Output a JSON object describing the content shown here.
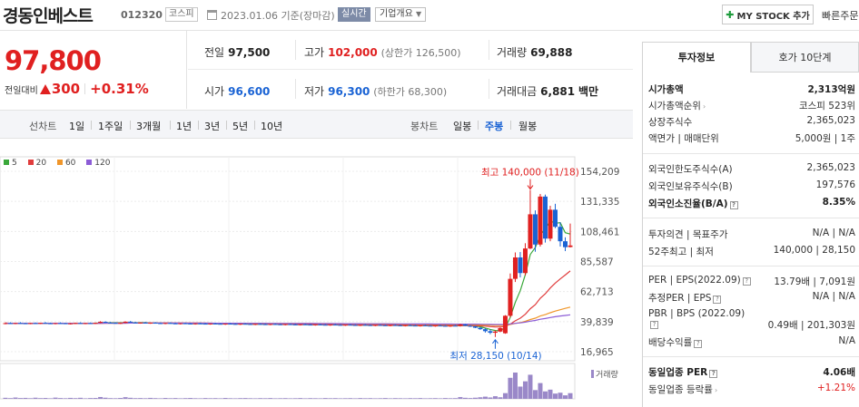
{
  "header": {
    "stock_name": "경동인베스트",
    "stock_code": "012320",
    "market": "코스피",
    "date_text": "2023.01.06 기준(장마감)",
    "live_badge": "실시간",
    "corp_overview": "기업개요",
    "my_stock_button": "MY STOCK 추가",
    "quick_order": "빠른주문"
  },
  "price": {
    "current": "97,800",
    "change_label": "전일대비",
    "change_amount": "300",
    "change_rate": "+0.31%",
    "colors": {
      "up": "#e02020",
      "down": "#1a63d4"
    }
  },
  "summary": {
    "prev_label": "전일",
    "prev": "97,500",
    "high_label": "고가",
    "high": "102,000",
    "upper_limit": "(상한가 126,500)",
    "volume_label": "거래량",
    "volume": "69,888",
    "open_label": "시가",
    "open": "96,600",
    "low_label": "저가",
    "low": "96,300",
    "lower_limit": "(하한가 68,300)",
    "amount_label": "거래대금",
    "amount": "6,881",
    "amount_unit": "백만"
  },
  "period": {
    "line_title": "선차트",
    "line_items": [
      "1일",
      "1주일",
      "3개월",
      "1년",
      "3년",
      "5년",
      "10년"
    ],
    "candle_title": "봉차트",
    "candle_items": [
      "일봉",
      "주봉",
      "월봉"
    ],
    "active_candle": "주봉"
  },
  "chart_data": {
    "type": "candlestick",
    "legend": [
      {
        "name": "5",
        "color": "#3aa83a"
      },
      {
        "name": "20",
        "color": "#e03c3c"
      },
      {
        "name": "60",
        "color": "#f0962a"
      },
      {
        "name": "120",
        "color": "#8c5cd6"
      }
    ],
    "y_ticks": [
      "154,209",
      "131,335",
      "108,461",
      "85,587",
      "62,713",
      "39,839",
      "16,965"
    ],
    "ylim": [
      16965,
      154209
    ],
    "annotations": {
      "high": "최고 140,000 (11/18)",
      "low": "최저 28,150 (10/14)"
    },
    "high_value": 140000,
    "low_value": 28150,
    "volume_label": "거래량",
    "candles": [
      [
        38500,
        39200,
        37800,
        38700
      ],
      [
        38700,
        39300,
        38200,
        38400
      ],
      [
        38400,
        38900,
        37900,
        38800
      ],
      [
        38800,
        39400,
        38300,
        38600
      ],
      [
        38600,
        39000,
        38000,
        38300
      ],
      [
        38300,
        38900,
        37900,
        38700
      ],
      [
        38700,
        39200,
        38200,
        38500
      ],
      [
        38500,
        39000,
        38000,
        38900
      ],
      [
        38900,
        39500,
        38400,
        38600
      ],
      [
        38600,
        39100,
        38100,
        38300
      ],
      [
        38300,
        38800,
        37800,
        38700
      ],
      [
        38700,
        39300,
        38200,
        38600
      ],
      [
        38600,
        39000,
        38100,
        38200
      ],
      [
        38200,
        38700,
        37700,
        38500
      ],
      [
        38500,
        39100,
        38000,
        38800
      ],
      [
        38800,
        39300,
        38300,
        38400
      ],
      [
        38400,
        38900,
        37900,
        38700
      ],
      [
        38700,
        39200,
        38200,
        38500
      ],
      [
        38500,
        39100,
        38000,
        38900
      ],
      [
        38900,
        40200,
        38600,
        39700
      ],
      [
        39700,
        40100,
        38900,
        39100
      ],
      [
        39100,
        39600,
        38500,
        38900
      ],
      [
        38900,
        39400,
        38300,
        38600
      ],
      [
        38600,
        39100,
        38100,
        38900
      ],
      [
        38900,
        40100,
        38600,
        39800
      ],
      [
        39800,
        40300,
        39000,
        39200
      ],
      [
        39200,
        39700,
        38600,
        38800
      ],
      [
        38800,
        39300,
        38300,
        39100
      ],
      [
        39100,
        39600,
        38500,
        38700
      ],
      [
        38700,
        39200,
        38200,
        39000
      ],
      [
        39000,
        39500,
        38500,
        38700
      ],
      [
        38700,
        39100,
        38200,
        38400
      ],
      [
        38400,
        38900,
        37900,
        38800
      ],
      [
        38800,
        39300,
        38300,
        38500
      ],
      [
        38500,
        39000,
        38000,
        38200
      ],
      [
        38200,
        38700,
        37700,
        38600
      ],
      [
        38600,
        39100,
        38100,
        38400
      ],
      [
        38400,
        38800,
        37900,
        38100
      ],
      [
        38100,
        38600,
        37600,
        38500
      ],
      [
        38500,
        39000,
        38000,
        38300
      ],
      [
        38300,
        38800,
        37800,
        38000
      ],
      [
        38000,
        38500,
        37500,
        38400
      ],
      [
        38400,
        38900,
        37900,
        38200
      ],
      [
        38200,
        38700,
        37700,
        37900
      ],
      [
        37900,
        38400,
        37400,
        38300
      ],
      [
        38300,
        38800,
        37800,
        38100
      ],
      [
        38100,
        38600,
        37600,
        37800
      ],
      [
        37800,
        38300,
        37300,
        38200
      ],
      [
        38200,
        38700,
        37700,
        38000
      ],
      [
        38000,
        38500,
        37500,
        37700
      ],
      [
        37700,
        38200,
        37200,
        38100
      ],
      [
        38100,
        38600,
        37600,
        37900
      ],
      [
        37900,
        38400,
        37400,
        37600
      ],
      [
        37600,
        38100,
        37100,
        38000
      ],
      [
        38000,
        38500,
        37500,
        37800
      ],
      [
        37800,
        38300,
        37300,
        37500
      ],
      [
        37500,
        38000,
        37000,
        37900
      ],
      [
        37900,
        38400,
        37400,
        37700
      ],
      [
        37700,
        38200,
        37200,
        37400
      ],
      [
        37400,
        37900,
        36900,
        37800
      ],
      [
        37800,
        38300,
        37300,
        37600
      ],
      [
        37600,
        38100,
        37100,
        37300
      ],
      [
        37300,
        37800,
        36800,
        37700
      ],
      [
        37700,
        38200,
        37200,
        37500
      ],
      [
        37500,
        38000,
        37000,
        37200
      ],
      [
        37200,
        37700,
        36700,
        37600
      ],
      [
        37600,
        38100,
        37100,
        37400
      ],
      [
        37400,
        37900,
        36900,
        37100
      ],
      [
        37100,
        37600,
        36600,
        37500
      ],
      [
        37500,
        38000,
        37000,
        37300
      ],
      [
        37300,
        37800,
        36800,
        37000
      ],
      [
        37000,
        37500,
        36500,
        37400
      ],
      [
        37400,
        37900,
        36900,
        37200
      ],
      [
        37200,
        37700,
        36700,
        36900
      ],
      [
        36900,
        37400,
        36400,
        37300
      ],
      [
        37300,
        37800,
        36800,
        37100
      ],
      [
        37100,
        37600,
        36600,
        36800
      ],
      [
        36800,
        37300,
        36300,
        37200
      ],
      [
        37200,
        37700,
        36700,
        37000
      ],
      [
        37000,
        37500,
        36500,
        36700
      ],
      [
        36700,
        37200,
        36200,
        37100
      ],
      [
        37100,
        37600,
        36600,
        36900
      ],
      [
        36900,
        37400,
        36400,
        36600
      ],
      [
        36600,
        37100,
        36100,
        37000
      ],
      [
        37000,
        37500,
        36500,
        36800
      ],
      [
        36800,
        37300,
        36300,
        36500
      ],
      [
        36500,
        37000,
        36000,
        36900
      ],
      [
        36900,
        37400,
        36400,
        36700
      ],
      [
        36700,
        37200,
        36200,
        36400
      ],
      [
        36400,
        36900,
        35900,
        36800
      ],
      [
        36800,
        37300,
        36300,
        36600
      ],
      [
        36600,
        38200,
        36100,
        37700
      ],
      [
        37700,
        38100,
        36500,
        36700
      ],
      [
        36700,
        37200,
        35800,
        36200
      ],
      [
        36200,
        36700,
        34900,
        35200
      ],
      [
        35200,
        35600,
        33600,
        34100
      ],
      [
        34100,
        35000,
        31500,
        32600
      ],
      [
        32600,
        33900,
        30300,
        31400
      ],
      [
        31400,
        33200,
        28150,
        32300
      ],
      [
        32300,
        35500,
        31800,
        34900
      ],
      [
        31000,
        44800,
        30600,
        44300
      ],
      [
        44300,
        76500,
        43000,
        72400
      ],
      [
        72400,
        92500,
        70000,
        88700
      ],
      [
        88700,
        92800,
        73500,
        76800
      ],
      [
        76800,
        99500,
        75000,
        95500
      ],
      [
        95500,
        140000,
        95000,
        121500
      ],
      [
        121500,
        124500,
        93000,
        98500
      ],
      [
        98500,
        137000,
        97000,
        135000
      ],
      [
        135000,
        136500,
        100000,
        103000
      ],
      [
        103000,
        128000,
        101000,
        125000
      ],
      [
        125000,
        129500,
        111000,
        112000
      ],
      [
        112000,
        115500,
        97000,
        101000
      ],
      [
        101000,
        104000,
        93500,
        96500
      ],
      [
        96600,
        114500,
        96300,
        97800
      ]
    ],
    "volumes": [
      1.2,
      0.8,
      1.5,
      0.9,
      1.1,
      0.7,
      1.3,
      0.8,
      1.0,
      0.6,
      1.4,
      0.9,
      0.7,
      1.1,
      0.8,
      1.2,
      0.6,
      0.9,
      1.0,
      2.1,
      1.3,
      0.8,
      0.7,
      1.0,
      1.9,
      1.2,
      0.8,
      0.9,
      0.7,
      1.1,
      0.8,
      0.6,
      1.0,
      0.7,
      0.9,
      0.6,
      0.8,
      1.0,
      0.7,
      0.6,
      0.9,
      0.7,
      0.8,
      0.6,
      1.0,
      0.7,
      0.6,
      0.8,
      0.9,
      0.7,
      0.6,
      0.8,
      0.7,
      0.9,
      0.6,
      0.7,
      0.8,
      0.6,
      0.7,
      0.9,
      0.6,
      0.8,
      0.7,
      0.6,
      0.9,
      0.7,
      0.8,
      0.6,
      0.7,
      0.8,
      0.6,
      0.9,
      0.7,
      0.8,
      0.6,
      0.7,
      0.9,
      0.6,
      0.8,
      0.7,
      0.6,
      0.8,
      0.7,
      0.9,
      0.6,
      0.7,
      0.8,
      0.6,
      0.9,
      0.7,
      0.8,
      2.0,
      1.2,
      0.9,
      1.3,
      1.8,
      2.5,
      1.6,
      3.0,
      1.8,
      6.5,
      24.0,
      30.0,
      14.0,
      20.0,
      27.5,
      10.0,
      18.0,
      8.5,
      10.5,
      6.0,
      7.0,
      4.0,
      6.5
    ]
  },
  "invest": {
    "tab_info": "투자정보",
    "tab_quote": "호가 10단계",
    "market_cap_label": "시가총액",
    "market_cap": "2,313억원",
    "cap_rank_label": "시가총액순위",
    "cap_rank": "코스피 523위",
    "shares_label": "상장주식수",
    "shares": "2,365,023",
    "par_label": "액면가 | 매매단위",
    "par": "5,000원 | 1주",
    "foreign_limit_label": "외국인한도주식수(A)",
    "foreign_limit": "2,365,023",
    "foreign_hold_label": "외국인보유주식수(B)",
    "foreign_hold": "197,576",
    "foreign_rate_label": "외국인소진율(B/A)",
    "foreign_rate": "8.35%",
    "opinion_label": "투자의견 | 목표주가",
    "opinion": "N/A | N/A",
    "week52_label": "52주최고 | 최저",
    "week52": "140,000 | 28,150",
    "per_label": "PER | EPS(2022.09)",
    "per": "13.79배 | 7,091원",
    "est_per_label": "추정PER | EPS",
    "est_per": "N/A | N/A",
    "pbr_label": "PBR | BPS (2022.09)",
    "pbr_val": "0.49배",
    "bps_val": "201,303원",
    "div_label": "배당수익률",
    "div": "N/A",
    "ind_per_label": "동일업종 PER",
    "ind_per": "4.06배",
    "ind_rate_label": "동일업종 등락률",
    "ind_rate": "+1.21%"
  }
}
